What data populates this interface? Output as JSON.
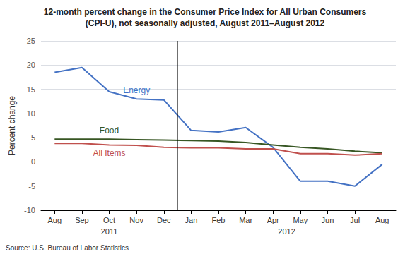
{
  "chart_data": {
    "type": "line",
    "title": "12-month percent change in the Consumer Price Index for All Urban Consumers",
    "subtitle": "(CPI-U), not seasonally adjusted, August 2011–August 2012",
    "ylabel": "Percent change",
    "categories": [
      "Aug",
      "Sep",
      "Oct",
      "Nov",
      "Dec",
      "Jan",
      "Feb",
      "Mar",
      "Apr",
      "May",
      "Jun",
      "Jul",
      "Aug"
    ],
    "series": [
      {
        "name": "Energy",
        "color": "#4472C4",
        "values": [
          18.5,
          19.5,
          14.5,
          13.0,
          12.8,
          6.5,
          6.2,
          7.1,
          3.0,
          -4.0,
          -4.0,
          -5.0,
          -0.5
        ]
      },
      {
        "name": "Food",
        "color": "#375623",
        "values": [
          4.7,
          4.7,
          4.7,
          4.6,
          4.5,
          4.4,
          4.3,
          4.0,
          3.5,
          3.0,
          2.7,
          2.2,
          1.9
        ]
      },
      {
        "name": "All Items",
        "color": "#C0504D",
        "values": [
          3.8,
          3.8,
          3.5,
          3.4,
          3.0,
          2.9,
          2.9,
          2.7,
          2.7,
          1.7,
          1.7,
          1.4,
          1.7
        ]
      }
    ],
    "annotations": [
      "2011",
      "2012",
      "Source: U.S. Bureau of Labor Statistics"
    ],
    "ylim": [
      -10,
      25
    ],
    "yticks": [
      -10,
      -5,
      0,
      5,
      10,
      15,
      20,
      25
    ],
    "grid": true
  }
}
